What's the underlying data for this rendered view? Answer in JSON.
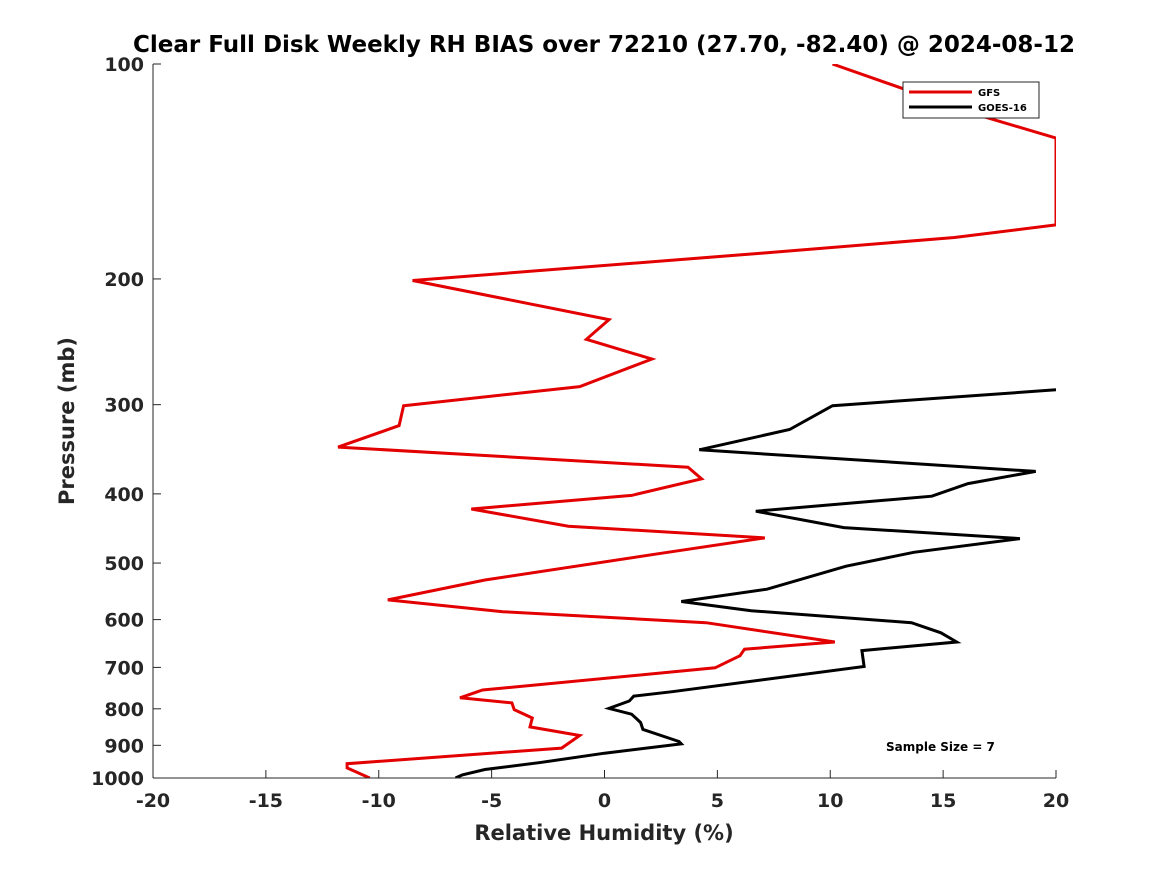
{
  "chart_data": {
    "type": "line",
    "title": "Clear Full Disk Weekly RH BIAS over 72210 (27.70, -82.40) @ 2024-08-12",
    "xlabel": "Relative Humidity (%)",
    "ylabel": "Pressure (mb)",
    "xlim": [
      -20,
      20
    ],
    "ylim": [
      100,
      1000
    ],
    "y_scale": "log",
    "y_reversed": true,
    "grid": false,
    "x_ticks": [
      -20,
      -15,
      -10,
      -5,
      0,
      5,
      10,
      15,
      20
    ],
    "x_tick_labels": [
      "-20",
      "-15",
      "-10",
      "-5",
      "0",
      "5",
      "10",
      "15",
      "20"
    ],
    "y_ticks": [
      100,
      200,
      300,
      400,
      500,
      600,
      700,
      800,
      900,
      1000
    ],
    "y_tick_labels": [
      "100",
      "200",
      "300",
      "400",
      "500",
      "600",
      "700",
      "800",
      "900",
      "1000"
    ],
    "legend": {
      "placement": "top-right",
      "entries": [
        {
          "name": "GFS",
          "color": "#e30000"
        },
        {
          "name": "GOES-16",
          "color": "#000000"
        }
      ]
    },
    "annotation": "Sample Size = 7",
    "series": [
      {
        "name": "GFS",
        "color": "#e30000",
        "points": [
          [
            10.1,
            100
          ],
          [
            16.6,
            118
          ],
          [
            20.0,
            127
          ],
          [
            20.0,
            168
          ],
          [
            15.5,
            175
          ],
          [
            7.0,
            184
          ],
          [
            -8.5,
            201
          ],
          [
            0.2,
            228
          ],
          [
            -0.8,
            243
          ],
          [
            2.1,
            259
          ],
          [
            -1.1,
            283
          ],
          [
            -8.9,
            301
          ],
          [
            -9.1,
            321
          ],
          [
            -11.8,
            344
          ],
          [
            3.7,
            367
          ],
          [
            4.3,
            381
          ],
          [
            1.2,
            402
          ],
          [
            -5.9,
            420
          ],
          [
            -1.6,
            444
          ],
          [
            7.1,
            461
          ],
          [
            2.8,
            483
          ],
          [
            -5.3,
            528
          ],
          [
            -9.6,
            563
          ],
          [
            -4.5,
            585
          ],
          [
            4.5,
            606
          ],
          [
            10.2,
            645
          ],
          [
            6.2,
            660
          ],
          [
            6.0,
            674
          ],
          [
            4.9,
            701
          ],
          [
            -5.4,
            753
          ],
          [
            -6.4,
            772
          ],
          [
            -4.1,
            785
          ],
          [
            -4.0,
            802
          ],
          [
            -3.2,
            824
          ],
          [
            -3.3,
            848
          ],
          [
            -1.1,
            872
          ],
          [
            -1.9,
            908
          ],
          [
            -11.4,
            955
          ],
          [
            -11.4,
            968
          ],
          [
            -10.4,
            1000
          ]
        ]
      },
      {
        "name": "GOES-16",
        "color": "#000000",
        "points": [
          [
            20.0,
            286
          ],
          [
            10.1,
            301
          ],
          [
            8.2,
            325
          ],
          [
            4.2,
            347
          ],
          [
            19.1,
            372
          ],
          [
            16.1,
            387
          ],
          [
            14.5,
            403
          ],
          [
            6.7,
            423
          ],
          [
            10.6,
            446
          ],
          [
            18.4,
            462
          ],
          [
            13.7,
            483
          ],
          [
            10.7,
            505
          ],
          [
            7.2,
            544
          ],
          [
            3.4,
            566
          ],
          [
            6.5,
            583
          ],
          [
            13.6,
            606
          ],
          [
            14.9,
            626
          ],
          [
            15.6,
            645
          ],
          [
            11.4,
            663
          ],
          [
            11.5,
            698
          ],
          [
            3.0,
            757
          ],
          [
            1.3,
            768
          ],
          [
            1.1,
            780
          ],
          [
            0.2,
            799
          ],
          [
            1.2,
            814
          ],
          [
            1.6,
            836
          ],
          [
            1.7,
            855
          ],
          [
            3.3,
            889
          ],
          [
            3.4,
            896
          ],
          [
            0.0,
            923
          ],
          [
            -2.9,
            952
          ],
          [
            -5.3,
            973
          ],
          [
            -6.3,
            990
          ],
          [
            -6.6,
            1000
          ]
        ]
      }
    ]
  }
}
